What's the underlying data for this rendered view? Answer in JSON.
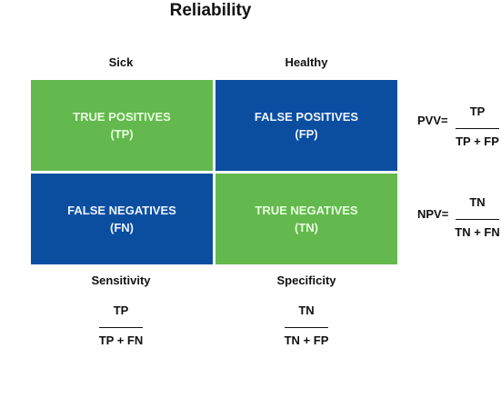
{
  "title": "Reliability",
  "columns": {
    "sick": "Sick",
    "healthy": "Healthy"
  },
  "matrix": {
    "tp": {
      "label": "TRUE POSITIVES",
      "abbr": "(TP)",
      "color": "#63b94d"
    },
    "fp": {
      "label": "FALSE POSITIVES",
      "abbr": "(FP)",
      "color": "#0b4ea0"
    },
    "fn": {
      "label": "FALSE NEGATIVES",
      "abbr": "(FN)",
      "color": "#0b4ea0"
    },
    "tn": {
      "label": "TRUE NEGATIVES",
      "abbr": "(TN)",
      "color": "#63b94d"
    }
  },
  "pvv": {
    "label": "PVV=",
    "numerator": "TP",
    "denominator": "TP + FP"
  },
  "npv": {
    "label": "NPV=",
    "numerator": "TN",
    "denominator": "TN + FN"
  },
  "sensitivity": {
    "label": "Sensitivity",
    "numerator": "TP",
    "denominator": "TP + FN"
  },
  "specificity": {
    "label": "Specificity",
    "numerator": "TN",
    "denominator": "TN + FP"
  }
}
